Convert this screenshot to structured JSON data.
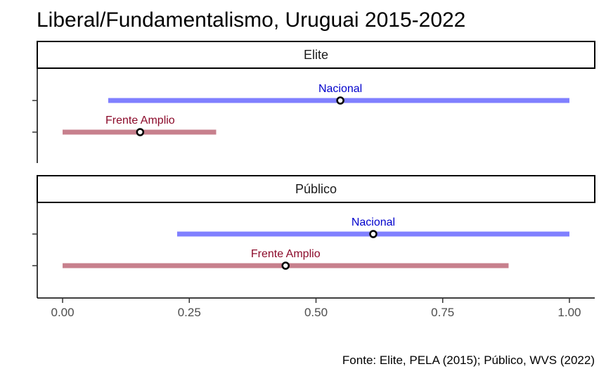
{
  "chart_data": {
    "type": "interval",
    "title": "Liberal/Fundamentalismo, Uruguai 2015-2022",
    "caption": "Fonte: Elite, PELA (2015); Público, WVS (2022)",
    "xlim": [
      -0.05,
      1.05
    ],
    "x_ticks": [
      0,
      0.25,
      0.5,
      0.75,
      1
    ],
    "x_tick_labels": [
      "0.00",
      "0.25",
      "0.50",
      "0.75",
      "1.00"
    ],
    "series_colors": {
      "Nacional": "#8080ff",
      "Frente Amplio": "#c7808d"
    },
    "label_colors": {
      "Nacional": "#0000cc",
      "Frente Amplio": "#8b0a2a"
    },
    "panels": [
      {
        "label": "Elite",
        "rows": [
          {
            "party": "Nacional",
            "low": 0.09,
            "high": 1.0,
            "point": 0.548
          },
          {
            "party": "Frente Amplio",
            "low": 0.0,
            "high": 0.303,
            "point": 0.153
          }
        ]
      },
      {
        "label": "Público",
        "rows": [
          {
            "party": "Nacional",
            "low": 0.226,
            "high": 1.0,
            "point": 0.613
          },
          {
            "party": "Frente Amplio",
            "low": 0.0,
            "high": 0.88,
            "point": 0.44
          }
        ]
      }
    ]
  }
}
